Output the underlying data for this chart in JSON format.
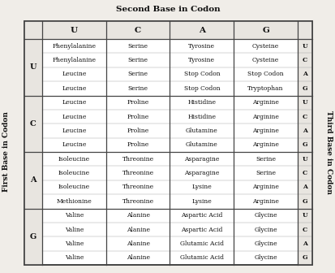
{
  "title": "Second Base in Codon",
  "y_label": "First Base in Codon",
  "right_label": "Third Base in Codon",
  "second_bases": [
    "U",
    "C",
    "A",
    "G"
  ],
  "first_bases": [
    "U",
    "C",
    "A",
    "G"
  ],
  "third_bases": [
    "U",
    "C",
    "A",
    "G"
  ],
  "cells": {
    "UU": [
      "Phenylalanine",
      "Phenylalanine",
      "Leucine",
      "Leucine"
    ],
    "UC": [
      "Serine",
      "Serine",
      "Serine",
      "Serine"
    ],
    "UA": [
      "Tyrosine",
      "Tyrosine",
      "Stop Codon",
      "Stop Codon"
    ],
    "UG": [
      "Cysteine",
      "Cysteine",
      "Stop Codon",
      "Tryptophan"
    ],
    "CU": [
      "Leucine",
      "Leucine",
      "Leucine",
      "Leucine"
    ],
    "CC": [
      "Proline",
      "Proline",
      "Proline",
      "Proline"
    ],
    "CA": [
      "Histidine",
      "Histidine",
      "Glutamine",
      "Glutamine"
    ],
    "CG": [
      "Arginine",
      "Arginine",
      "Arginine",
      "Arginine"
    ],
    "AU": [
      "Isoleucine",
      "Isoleucine",
      "Isoleucine",
      "Methionine"
    ],
    "AC": [
      "Threonine",
      "Threonine",
      "Threonine",
      "Threonine"
    ],
    "AA": [
      "Asparagine",
      "Asparagine",
      "Lysine",
      "Lysine"
    ],
    "AG": [
      "Serine",
      "Serine",
      "Arginine",
      "Arginine"
    ],
    "GU": [
      "Valine",
      "Valine",
      "Valine",
      "Valine"
    ],
    "GC": [
      "Alanine",
      "Alanine",
      "Alanine",
      "Alanine"
    ],
    "GA": [
      "Aspartic Acid",
      "Aspartic Acid",
      "Glutamic Acid",
      "Glutamic Acid"
    ],
    "GG": [
      "Glycine",
      "Glycine",
      "Glycine",
      "Glycine"
    ]
  },
  "bg_color": "#f0ede8",
  "line_color": "#444444",
  "text_color": "#111111",
  "white": "#ffffff",
  "title_fontsize": 7.5,
  "cell_fontsize": 5.5,
  "header_fontsize": 7.5,
  "side_label_fontsize": 6.5,
  "base_label_fontsize": 7.0
}
